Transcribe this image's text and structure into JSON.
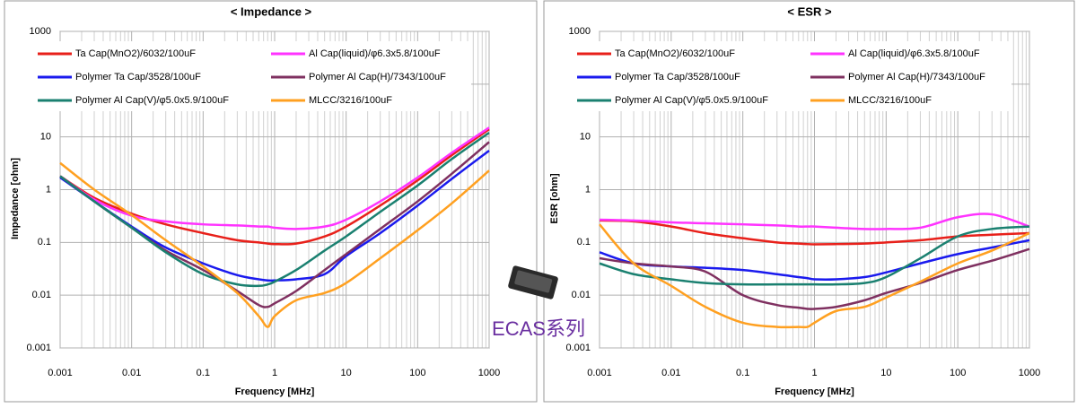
{
  "chart_data": [
    {
      "type": "line",
      "title": "< Impedance >",
      "xlabel": "Frequency [MHz]",
      "ylabel": "Impedance [ohm]",
      "log_x": true,
      "log_y": true,
      "grid": true,
      "minor_grid": true,
      "xlim": [
        0.001,
        1000
      ],
      "xticks": [
        0.001,
        0.01,
        0.1,
        1,
        10,
        100,
        1000
      ],
      "ylim": [
        0.001,
        1000
      ],
      "yticks": [
        0.001,
        0.01,
        0.1,
        1,
        10,
        100,
        1000
      ],
      "x": [
        0.001,
        0.003,
        0.01,
        0.03,
        0.1,
        0.3,
        0.6,
        0.8,
        1,
        2,
        5,
        10,
        30,
        100,
        300,
        1000
      ],
      "series": [
        {
          "name": "Ta Cap(MnO2)/6032/100uF",
          "color": "#e8201a",
          "values": [
            1.8,
            0.7,
            0.35,
            0.22,
            0.15,
            0.11,
            0.1,
            0.095,
            0.093,
            0.095,
            0.13,
            0.2,
            0.5,
            1.5,
            4.5,
            14
          ]
        },
        {
          "name": "Al Cap(liquid)/φ6.3x5.8/100uF",
          "color": "#ff33ff",
          "values": [
            1.8,
            0.65,
            0.32,
            0.25,
            0.22,
            0.21,
            0.2,
            0.2,
            0.19,
            0.18,
            0.2,
            0.27,
            0.6,
            1.7,
            5,
            15
          ]
        },
        {
          "name": "Polymer Ta Cap/3528/100uF",
          "color": "#1a1aee",
          "values": [
            1.7,
            0.6,
            0.2,
            0.08,
            0.04,
            0.024,
            0.02,
            0.019,
            0.019,
            0.02,
            0.025,
            0.055,
            0.15,
            0.5,
            1.6,
            5.5
          ]
        },
        {
          "name": "Polymer Al Cap(H)/7343/100uF",
          "color": "#7f3060",
          "values": [
            1.8,
            0.6,
            0.19,
            0.07,
            0.03,
            0.012,
            0.0065,
            0.006,
            0.007,
            0.012,
            0.03,
            0.06,
            0.18,
            0.6,
            2.0,
            8
          ]
        },
        {
          "name": "Polymer Al Cap(V)/φ5.0x5.9/100uF",
          "color": "#1a8070",
          "values": [
            1.8,
            0.6,
            0.19,
            0.065,
            0.025,
            0.016,
            0.015,
            0.016,
            0.018,
            0.03,
            0.07,
            0.13,
            0.38,
            1.2,
            3.8,
            12
          ]
        },
        {
          "name": "MLCC/3216/100uF",
          "color": "#ffa020",
          "values": [
            3.2,
            1.0,
            0.33,
            0.11,
            0.035,
            0.011,
            0.004,
            0.0025,
            0.004,
            0.008,
            0.011,
            0.017,
            0.05,
            0.17,
            0.55,
            2.3
          ]
        }
      ]
    },
    {
      "type": "line",
      "title": "< ESR >",
      "xlabel": "Frequency [MHz]",
      "ylabel": "ESR [ohm]",
      "log_x": true,
      "log_y": true,
      "grid": true,
      "minor_grid": true,
      "xlim": [
        0.001,
        1000
      ],
      "xticks": [
        0.001,
        0.01,
        0.1,
        1,
        10,
        100,
        1000
      ],
      "ylim": [
        0.001,
        1000
      ],
      "yticks": [
        0.001,
        0.01,
        0.1,
        1,
        10,
        100,
        1000
      ],
      "x": [
        0.001,
        0.003,
        0.01,
        0.03,
        0.1,
        0.3,
        0.6,
        0.8,
        1,
        2,
        5,
        10,
        30,
        100,
        300,
        1000
      ],
      "series": [
        {
          "name": "Ta Cap(MnO2)/6032/100uF",
          "color": "#e8201a",
          "values": [
            0.26,
            0.25,
            0.2,
            0.15,
            0.12,
            0.1,
            0.095,
            0.093,
            0.092,
            0.093,
            0.095,
            0.1,
            0.11,
            0.13,
            0.14,
            0.15
          ]
        },
        {
          "name": "Al Cap(liquid)/φ6.3x5.8/100uF",
          "color": "#ff33ff",
          "values": [
            0.27,
            0.26,
            0.24,
            0.23,
            0.22,
            0.21,
            0.2,
            0.2,
            0.2,
            0.19,
            0.18,
            0.18,
            0.19,
            0.3,
            0.34,
            0.2
          ]
        },
        {
          "name": "Polymer Ta Cap/3528/100uF",
          "color": "#1a1aee",
          "values": [
            0.065,
            0.04,
            0.035,
            0.033,
            0.03,
            0.025,
            0.022,
            0.021,
            0.02,
            0.02,
            0.022,
            0.027,
            0.04,
            0.06,
            0.08,
            0.11
          ]
        },
        {
          "name": "Polymer Al Cap(H)/7343/100uF",
          "color": "#7f3060",
          "values": [
            0.05,
            0.04,
            0.035,
            0.028,
            0.01,
            0.0065,
            0.0058,
            0.0055,
            0.0055,
            0.006,
            0.008,
            0.011,
            0.017,
            0.03,
            0.045,
            0.075
          ]
        },
        {
          "name": "Polymer Al Cap(V)/φ5.0x5.9/100uF",
          "color": "#1a8070",
          "values": [
            0.04,
            0.025,
            0.02,
            0.017,
            0.016,
            0.016,
            0.016,
            0.016,
            0.016,
            0.016,
            0.017,
            0.022,
            0.05,
            0.13,
            0.18,
            0.2
          ]
        },
        {
          "name": "MLCC/3216/100uF",
          "color": "#ffa020",
          "values": [
            0.22,
            0.04,
            0.015,
            0.006,
            0.003,
            0.0025,
            0.0025,
            0.0025,
            0.003,
            0.005,
            0.006,
            0.009,
            0.018,
            0.04,
            0.07,
            0.15
          ]
        }
      ]
    }
  ],
  "annotation": "ECAS系列"
}
